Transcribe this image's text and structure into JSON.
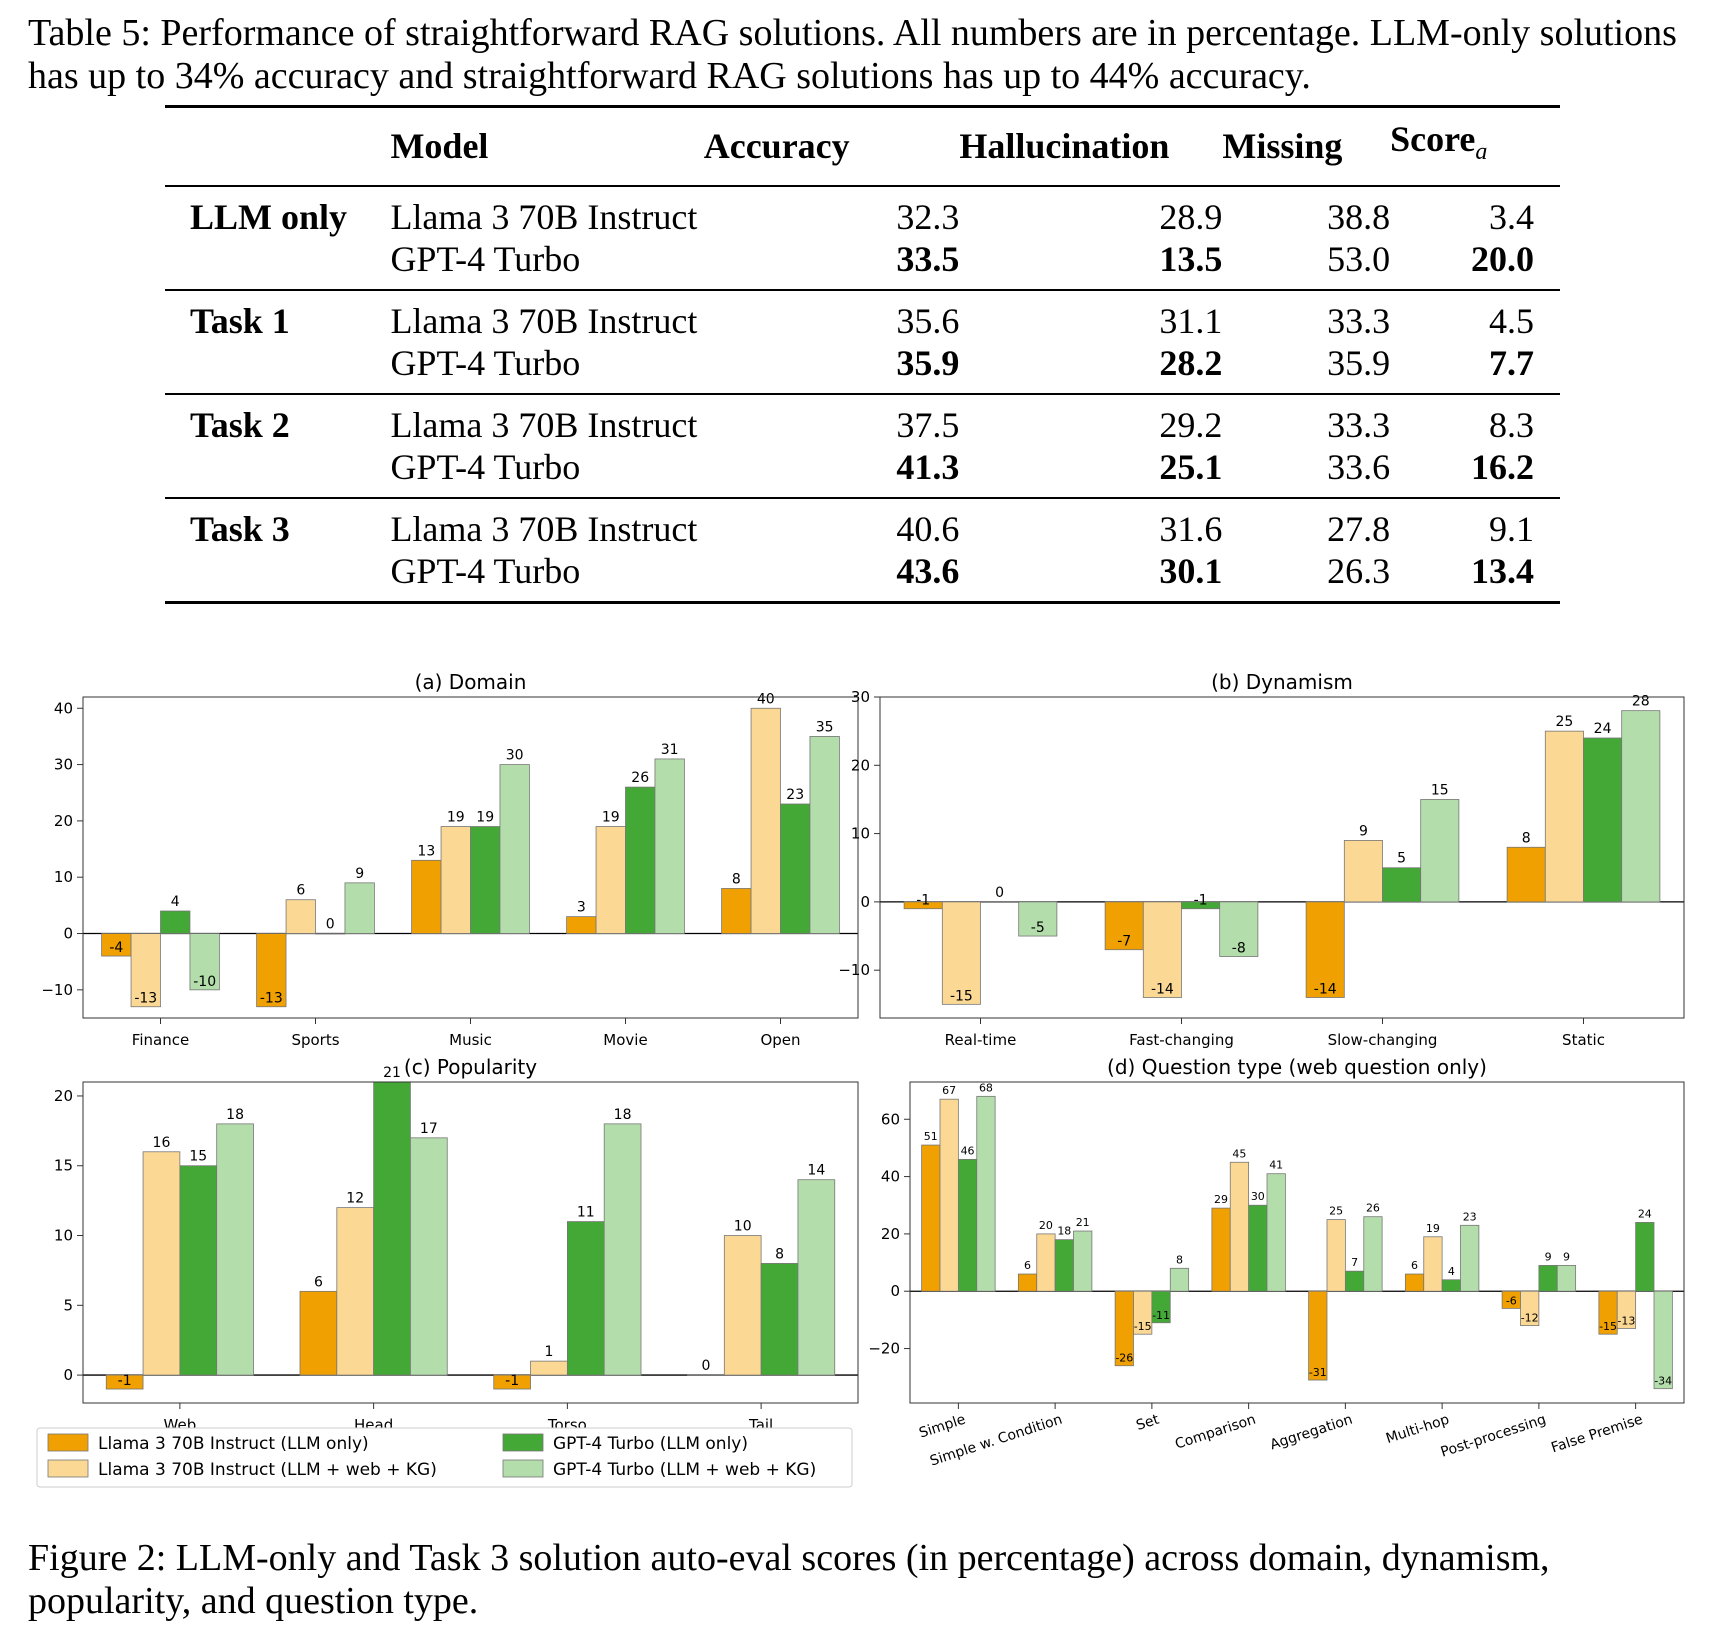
{
  "table": {
    "caption": "Table 5: Performance of straightforward RAG solutions. All numbers are in percentage. LLM-only solutions has up to 34% accuracy and straightforward RAG solutions has up to 44% accuracy.",
    "headers": {
      "model": "Model",
      "accuracy": "Accuracy",
      "hallucination": "Hallucination",
      "missing": "Missing",
      "score": "Score",
      "score_sub": "a"
    },
    "groups": [
      {
        "label": "LLM only",
        "rows": [
          {
            "model": "Llama 3 70B Instruct",
            "accuracy": "32.3",
            "hallucination": "28.9",
            "missing": "38.8",
            "score": "3.4"
          },
          {
            "model": "GPT-4 Turbo",
            "accuracy": "33.5",
            "hallucination": "13.5",
            "missing": "53.0",
            "score": "20.0"
          }
        ]
      },
      {
        "label": "Task 1",
        "rows": [
          {
            "model": "Llama 3 70B Instruct",
            "accuracy": "35.6",
            "hallucination": "31.1",
            "missing": "33.3",
            "score": "4.5"
          },
          {
            "model": "GPT-4 Turbo",
            "accuracy": "35.9",
            "hallucination": "28.2",
            "missing": "35.9",
            "score": "7.7"
          }
        ]
      },
      {
        "label": "Task 2",
        "rows": [
          {
            "model": "Llama 3 70B Instruct",
            "accuracy": "37.5",
            "hallucination": "29.2",
            "missing": "33.3",
            "score": "8.3"
          },
          {
            "model": "GPT-4 Turbo",
            "accuracy": "41.3",
            "hallucination": "25.1",
            "missing": "33.6",
            "score": "16.2"
          }
        ]
      },
      {
        "label": "Task 3",
        "rows": [
          {
            "model": "Llama 3 70B Instruct",
            "accuracy": "40.6",
            "hallucination": "31.6",
            "missing": "27.8",
            "score": "9.1"
          },
          {
            "model": "GPT-4 Turbo",
            "accuracy": "43.6",
            "hallucination": "30.1",
            "missing": "26.3",
            "score": "13.4"
          }
        ]
      }
    ]
  },
  "figure_caption": "Figure 2: LLM-only and Task 3 solution auto-eval scores (in percentage) across domain, dynamism, popularity, and question type.",
  "colors": {
    "llama_llm": "#f0a000",
    "llama_rag": "#fbd995",
    "gpt_llm": "#43a835",
    "gpt_rag": "#b3ddab"
  },
  "legend": [
    "Llama 3 70B Instruct (LLM only)",
    "Llama 3 70B Instruct (LLM + web + KG)",
    "GPT-4 Turbo (LLM only)",
    "GPT-4 Turbo (LLM + web + KG)"
  ],
  "chart_data": [
    {
      "type": "bar",
      "title": "(a) Domain",
      "categories": [
        "Finance",
        "Sports",
        "Music",
        "Movie",
        "Open"
      ],
      "ylim": [
        -15,
        42
      ],
      "yticks": [
        -10,
        0,
        10,
        20,
        30,
        40
      ],
      "series": [
        {
          "name": "Llama 3 70B Instruct (LLM only)",
          "values": [
            -4,
            -13,
            13,
            3,
            8
          ]
        },
        {
          "name": "Llama 3 70B Instruct (LLM + web + KG)",
          "values": [
            -13,
            6,
            19,
            19,
            40
          ]
        },
        {
          "name": "GPT-4 Turbo (LLM only)",
          "values": [
            4,
            0,
            19,
            26,
            23
          ]
        },
        {
          "name": "GPT-4 Turbo (LLM + web + KG)",
          "values": [
            -10,
            9,
            30,
            31,
            35
          ]
        }
      ]
    },
    {
      "type": "bar",
      "title": "(b) Dynamism",
      "categories": [
        "Real-time",
        "Fast-changing",
        "Slow-changing",
        "Static"
      ],
      "ylim": [
        -17,
        30
      ],
      "yticks": [
        -10,
        0,
        10,
        20,
        30
      ],
      "series": [
        {
          "name": "Llama 3 70B Instruct (LLM only)",
          "values": [
            -1,
            -7,
            -14,
            8
          ]
        },
        {
          "name": "Llama 3 70B Instruct (LLM + web + KG)",
          "values": [
            -15,
            -14,
            9,
            25
          ]
        },
        {
          "name": "GPT-4 Turbo (LLM only)",
          "values": [
            0,
            -1,
            5,
            24
          ]
        },
        {
          "name": "GPT-4 Turbo (LLM + web + KG)",
          "values": [
            -5,
            -8,
            15,
            28
          ]
        }
      ]
    },
    {
      "type": "bar",
      "title": "(c) Popularity",
      "categories": [
        "Web",
        "Head",
        "Torso",
        "Tail"
      ],
      "ylim": [
        -2,
        21
      ],
      "yticks": [
        0,
        5,
        10,
        15,
        20
      ],
      "series": [
        {
          "name": "Llama 3 70B Instruct (LLM only)",
          "values": [
            -1,
            6,
            -1,
            0
          ]
        },
        {
          "name": "Llama 3 70B Instruct (LLM + web + KG)",
          "values": [
            16,
            12,
            1,
            10
          ]
        },
        {
          "name": "GPT-4 Turbo (LLM only)",
          "values": [
            15,
            21,
            11,
            8
          ]
        },
        {
          "name": "GPT-4 Turbo (LLM + web + KG)",
          "values": [
            18,
            17,
            18,
            14
          ]
        }
      ]
    },
    {
      "type": "bar",
      "title": "(d) Question type (web question only)",
      "categories": [
        "Simple",
        "Simple w. Condition",
        "Set",
        "Comparison",
        "Aggregation",
        "Multi-hop",
        "Post-processing",
        "False Premise"
      ],
      "ylim": [
        -39,
        73
      ],
      "yticks": [
        -20,
        0,
        20,
        40,
        60
      ],
      "series": [
        {
          "name": "Llama 3 70B Instruct (LLM only)",
          "values": [
            51,
            6,
            -26,
            29,
            -31,
            6,
            -6,
            -15
          ]
        },
        {
          "name": "Llama 3 70B Instruct (LLM + web + KG)",
          "values": [
            67,
            20,
            -15,
            45,
            25,
            19,
            -12,
            -13
          ]
        },
        {
          "name": "GPT-4 Turbo (LLM only)",
          "values": [
            46,
            18,
            -11,
            30,
            7,
            4,
            9,
            24
          ]
        },
        {
          "name": "GPT-4 Turbo (LLM + web + KG)",
          "values": [
            68,
            21,
            8,
            41,
            26,
            23,
            9,
            -34
          ]
        }
      ]
    }
  ]
}
